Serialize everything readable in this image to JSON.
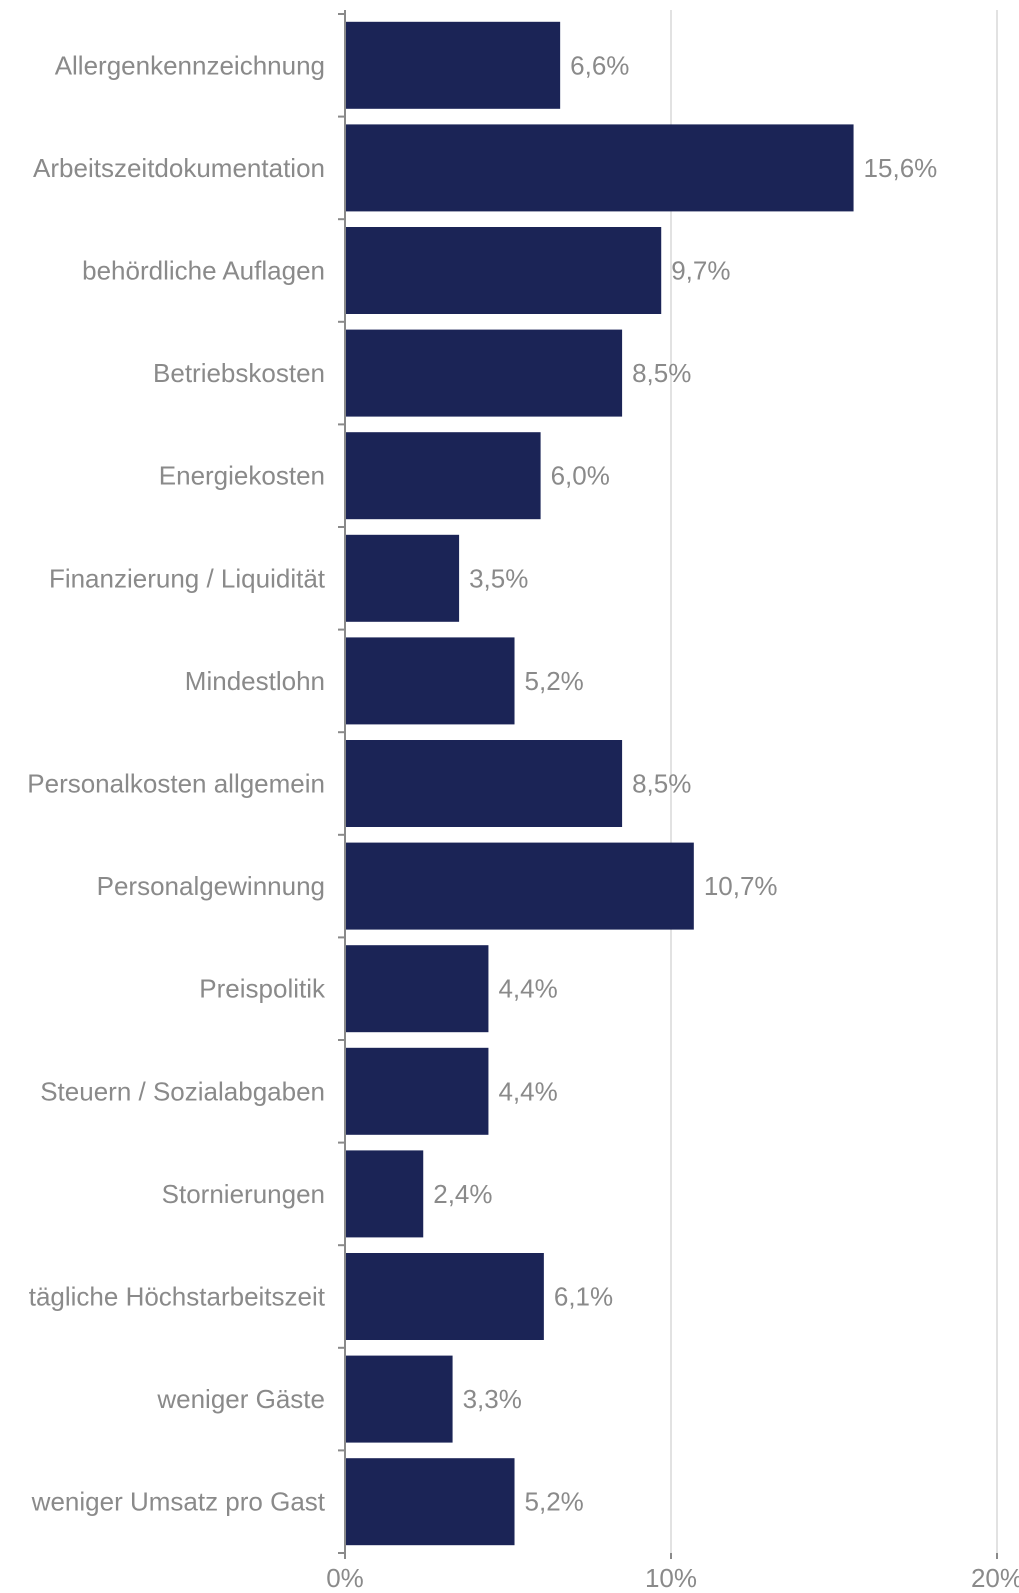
{
  "chart_data": {
    "type": "bar",
    "orientation": "horizontal",
    "categories": [
      "Allergenkennzeichnung",
      "Arbeitszeitdokumentation",
      "behördliche Auflagen",
      "Betriebskosten",
      "Energiekosten",
      "Finanzierung / Liquidität",
      "Mindestlohn",
      "Personalkosten allgemein",
      "Personalgewinnung",
      "Preispolitik",
      "Steuern / Sozialabgaben",
      "Stornierungen",
      "tägliche Höchstarbeitszeit",
      "weniger Gäste",
      "weniger Umsatz pro Gast"
    ],
    "values": [
      6.6,
      15.6,
      9.7,
      8.5,
      6.0,
      3.5,
      5.2,
      8.5,
      10.7,
      4.4,
      4.4,
      2.4,
      6.1,
      3.3,
      5.2
    ],
    "value_labels": [
      "6,6%",
      "15,6%",
      "9,7%",
      "8,5%",
      "6,0%",
      "3,5%",
      "5,2%",
      "8,5%",
      "10,7%",
      "4,4%",
      "4,4%",
      "2,4%",
      "6,1%",
      "3,3%",
      "5,2%"
    ],
    "x_ticks": [
      0,
      10,
      20
    ],
    "x_tick_labels": [
      "0%",
      "10%",
      "20%"
    ],
    "xlim": [
      0,
      20
    ],
    "title": "",
    "xlabel": "",
    "ylabel": "",
    "grid": "vertical",
    "legend": "none",
    "bar_color": "#1b2456",
    "text_color": "#8a8a8a",
    "grid_color": "#d9d9d9"
  }
}
